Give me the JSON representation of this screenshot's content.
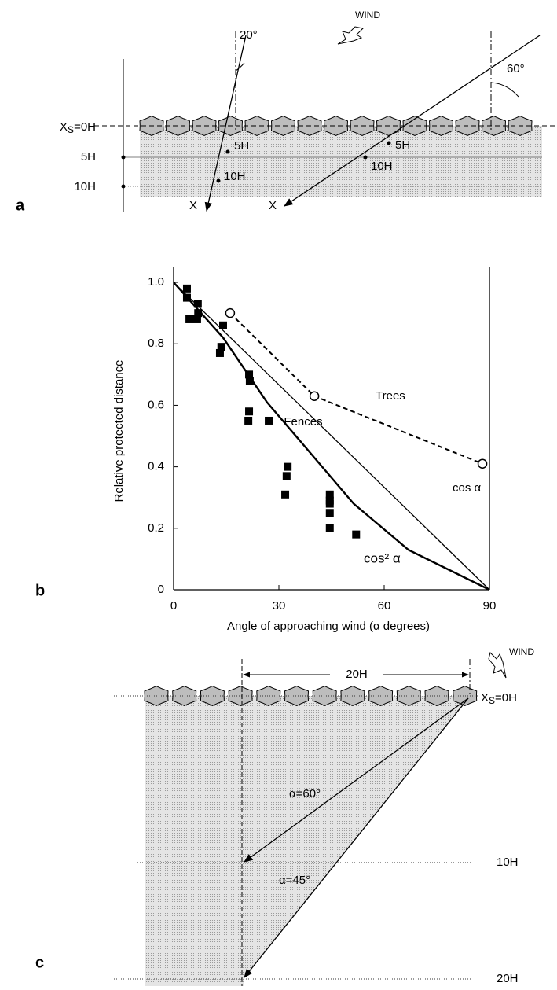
{
  "panel_a": {
    "letter": "a",
    "wind": "WIND",
    "angle_left": "20°",
    "angle_right": "60°",
    "origin_label": {
      "main": "X",
      "sub": "S",
      "rest": "=0H"
    },
    "axis_labels": [
      "5H",
      "10H"
    ],
    "left_arrow": {
      "marks": [
        "5H",
        "10H"
      ],
      "end": "X"
    },
    "right_arrow": {
      "marks": [
        "5H",
        "10H"
      ],
      "end": "X"
    }
  },
  "chart_data": {
    "type": "scatter",
    "letter": "b",
    "xlabel": "Angle of approaching wind (α degrees)",
    "ylabel": "Relative protected distance",
    "xlim": [
      0,
      90
    ],
    "ylim": [
      0,
      1.05
    ],
    "xticks": [
      0,
      30,
      60,
      90
    ],
    "yticks": [
      0,
      0.2,
      0.4,
      0.6,
      0.8,
      {
        "value": 1,
        "label": "1.0"
      }
    ],
    "series": [
      {
        "name": "Fences",
        "color": "#000000",
        "marker": "square",
        "line": false,
        "x": [
          3.8,
          3.8,
          4.5,
          6.7,
          6.9,
          7.0,
          14.1,
          13.6,
          13.2,
          21.5,
          21.7,
          21.5,
          21.3,
          27.1,
          32.5,
          32.2,
          31.8,
          44.5,
          44.5,
          44.5,
          44.5,
          44.5,
          52.0
        ],
        "values": [
          0.98,
          0.95,
          0.88,
          0.88,
          0.93,
          0.9,
          0.86,
          0.79,
          0.77,
          0.7,
          0.68,
          0.58,
          0.55,
          0.55,
          0.4,
          0.37,
          0.31,
          0.31,
          0.29,
          0.28,
          0.25,
          0.2,
          0.18
        ]
      },
      {
        "name": "Trees",
        "color": "#000000",
        "marker": "circle",
        "line": true,
        "dashed": true,
        "x": [
          16.1,
          40.1,
          88.0
        ],
        "values": [
          0.9,
          0.63,
          0.41
        ]
      },
      {
        "name": "cos α",
        "color": "#000000",
        "marker": null,
        "line": true,
        "dashed": false,
        "width": 1.3,
        "x": [
          0,
          90
        ],
        "values": [
          1.0,
          0
        ]
      },
      {
        "name": "cos² α",
        "color": "#000000",
        "marker": null,
        "line": true,
        "dashed": false,
        "width": 2.4,
        "x": [
          0,
          14.1,
          26.6,
          35.6,
          51.3,
          66.9,
          90
        ],
        "values": [
          1.0,
          0.82,
          0.61,
          0.49,
          0.28,
          0.13,
          0
        ]
      }
    ]
  },
  "panel_c": {
    "letter": "c",
    "wind": "WIND",
    "span": "20H",
    "origin_label": {
      "main": "X",
      "sub": "S",
      "rest": "=0H"
    },
    "arrow_labels": [
      "α=60°",
      "α=45°"
    ],
    "depth_labels": [
      "10H",
      "20H"
    ]
  }
}
